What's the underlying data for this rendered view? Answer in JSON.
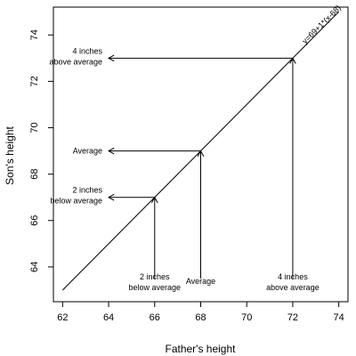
{
  "chart_data": {
    "type": "line",
    "title": "",
    "xlabel": "Father's height",
    "ylabel": "Son's height",
    "xlim": [
      61.6,
      74.4
    ],
    "ylim": [
      62.5,
      75.2
    ],
    "x_ticks": [
      62,
      64,
      66,
      68,
      70,
      72,
      74
    ],
    "y_ticks": [
      64,
      66,
      68,
      70,
      72,
      74
    ],
    "grid": false,
    "series": [
      {
        "x": [
          62,
          74
        ],
        "y": [
          63,
          75
        ]
      }
    ],
    "line_label": "y=69+1*(x-68)",
    "arrows": [
      {
        "x": 66,
        "y": 67,
        "horizontal_label": [
          "2 inches",
          "below average"
        ],
        "vertical_label": [
          "2 inches",
          "below average"
        ]
      },
      {
        "x": 68,
        "y": 69,
        "horizontal_label": [
          "Average"
        ],
        "vertical_label": [
          "Average"
        ]
      },
      {
        "x": 72,
        "y": 73,
        "horizontal_label": [
          "4 inches",
          "above average"
        ],
        "vertical_label": [
          "4 inches",
          "above average"
        ]
      }
    ]
  }
}
